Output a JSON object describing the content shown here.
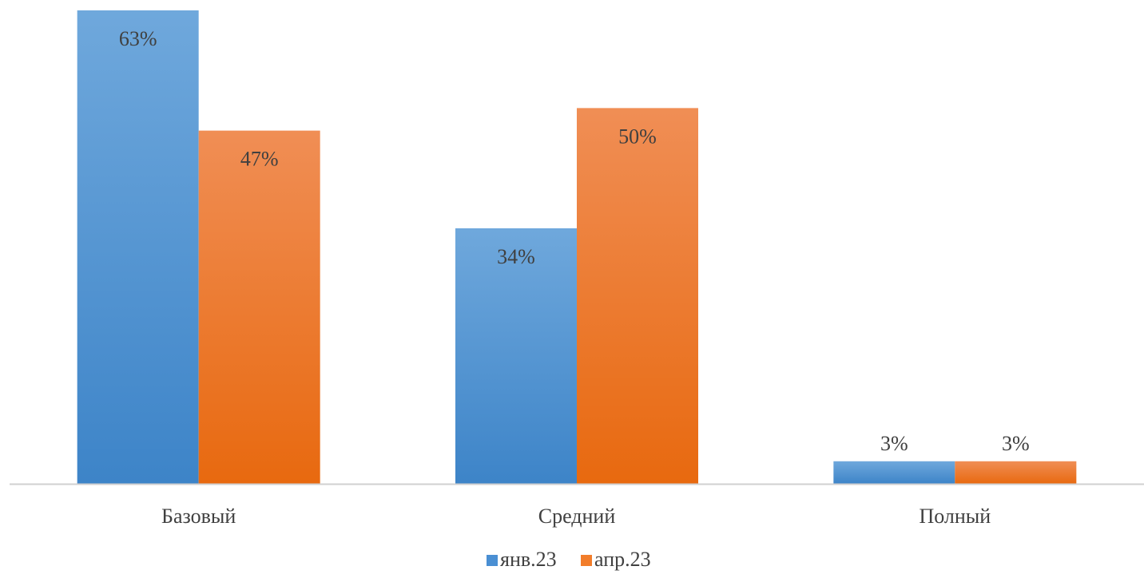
{
  "chart_data": {
    "type": "bar",
    "categories": [
      "Базовый",
      "Средний",
      "Полный"
    ],
    "series": [
      {
        "name": "янв.23",
        "values": [
          63,
          34,
          3
        ],
        "labels": [
          "63%",
          "34%",
          "3%"
        ],
        "color": "#4a8fd3",
        "color_top": "#6fa8dc",
        "color_bottom": "#3d84c8"
      },
      {
        "name": "апр.23",
        "values": [
          47,
          50,
          3
        ],
        "labels": [
          "47%",
          "50%",
          "3%"
        ],
        "color": "#f27d2a",
        "color_top": "#f08e55",
        "color_bottom": "#e8690f"
      }
    ],
    "unit": "%",
    "ylim": [
      0,
      63
    ],
    "grid": false,
    "legend_position": "bottom"
  },
  "axis_color": "#d0d0d0"
}
